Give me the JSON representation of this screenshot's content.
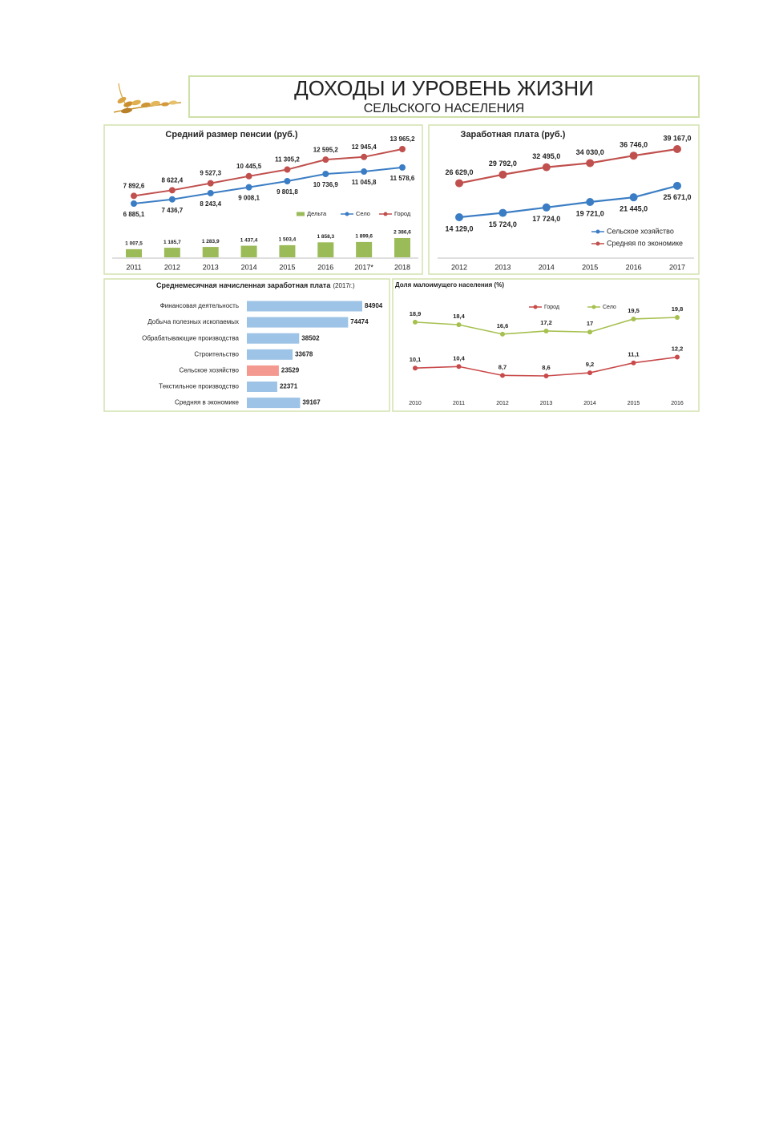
{
  "header": {
    "title": "ДОХОДЫ И УРОВЕНЬ ЖИЗНИ",
    "subtitle": "СЕЛЬСКОГО НАСЕЛЕНИЯ"
  },
  "chart_data": [
    {
      "type": "combo",
      "title": "Средний размер пенсии (руб.)",
      "categories": [
        "2011",
        "2012",
        "2013",
        "2014",
        "2015",
        "2016",
        "2017*",
        "2018"
      ],
      "series": [
        {
          "name": "Дельта",
          "type": "bar",
          "color": "#9bbb59",
          "values": [
            1007.5,
            1185.7,
            1283.9,
            1437.4,
            1503.4,
            1858.3,
            1899.6,
            2386.6
          ],
          "value_labels": [
            "1 007,5",
            "1 185,7",
            "1 283,9",
            "1 437,4",
            "1 503,4",
            "1 858,3",
            "1 899,6",
            "2 386,6"
          ]
        },
        {
          "name": "Село",
          "type": "line",
          "color": "#3b7dc4",
          "values": [
            6885.1,
            7436.7,
            8243.4,
            9008.1,
            9801.8,
            10736.9,
            11045.8,
            11578.6
          ],
          "value_labels": [
            "6 885,1",
            "7 436,7",
            "8 243,4",
            "9 008,1",
            "9 801,8",
            "10 736,9",
            "11 045,8",
            "11 578,6"
          ]
        },
        {
          "name": "Город",
          "type": "line",
          "color": "#c0504d",
          "values": [
            7892.6,
            8622.4,
            9527.3,
            10445.5,
            11305.2,
            12595.2,
            12945.4,
            13965.2
          ],
          "value_labels": [
            "7 892,6",
            "8 622,4",
            "9 527,3",
            "10 445,5",
            "11 305,2",
            "12 595,2",
            "12 945,4",
            "13 965,2"
          ]
        }
      ]
    },
    {
      "type": "line",
      "title": "Заработная плата (руб.)",
      "categories": [
        "2012",
        "2013",
        "2014",
        "2015",
        "2016",
        "2017"
      ],
      "series": [
        {
          "name": "Сельское хозяйство",
          "color": "#3b7dc4",
          "values": [
            14129,
            15724,
            17724,
            19721,
            21445,
            25671
          ],
          "value_labels": [
            "14 129,0",
            "15 724,0",
            "17 724,0",
            "19 721,0",
            "21 445,0",
            "25 671,0"
          ]
        },
        {
          "name": "Средняя по экономике",
          "color": "#c0504d",
          "values": [
            26629,
            29792,
            32495,
            34030,
            36746,
            39167
          ],
          "value_labels": [
            "26 629,0",
            "29 792,0",
            "32 495,0",
            "34 030,0",
            "36 746,0",
            "39 167,0"
          ]
        }
      ]
    },
    {
      "type": "bar",
      "orientation": "horizontal",
      "title": "Среднемесячная начисленная заработная плата",
      "subtitle": "(2017г.)",
      "categories": [
        "Финансовая деятельность",
        "Добыча полезных ископаемых",
        "Обрабатывающие производства",
        "Строительство",
        "Сельское хозяйство",
        "Текстильное производство",
        "Средняя в экономике"
      ],
      "values": [
        84904,
        74474,
        38502,
        33678,
        23529,
        22371,
        39167
      ],
      "colors": [
        "#9dc3e6",
        "#9dc3e6",
        "#9dc3e6",
        "#9dc3e6",
        "#f4998f",
        "#9dc3e6",
        "#9dc3e6"
      ]
    },
    {
      "type": "line",
      "title": "Доля малоимущего населения (%)",
      "categories": [
        "2010",
        "2011",
        "2012",
        "2013",
        "2014",
        "2015",
        "2016"
      ],
      "series": [
        {
          "name": "Город",
          "color": "#c94a4a",
          "values": [
            10.1,
            10.4,
            8.7,
            8.6,
            9.2,
            11.1,
            12.2
          ],
          "value_labels": [
            "10,1",
            "10,4",
            "8,7",
            "8,6",
            "9,2",
            "11,1",
            "12,2"
          ]
        },
        {
          "name": "Село",
          "color": "#a6c04f",
          "values": [
            18.9,
            18.4,
            16.6,
            17.2,
            17,
            19.5,
            19.8
          ],
          "value_labels": [
            "18,9",
            "18,4",
            "16,6",
            "17,2",
            "17",
            "19,5",
            "19,8"
          ]
        }
      ]
    }
  ]
}
